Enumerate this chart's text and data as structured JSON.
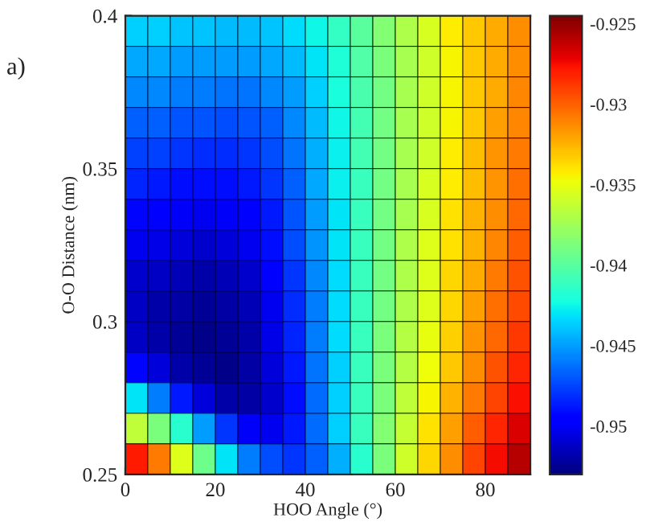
{
  "chart_data": {
    "type": "heatmap",
    "xlabel": "HOO Angle (°)",
    "ylabel": "O-O Distance (nm)",
    "annotations": [
      "a)"
    ],
    "x": [
      2.5,
      7.5,
      12.5,
      17.5,
      22.5,
      27.5,
      32.5,
      37.5,
      42.5,
      47.5,
      52.5,
      57.5,
      62.5,
      67.5,
      72.5,
      77.5,
      82.5,
      87.5
    ],
    "y": [
      0.395,
      0.385,
      0.375,
      0.365,
      0.355,
      0.345,
      0.335,
      0.325,
      0.315,
      0.305,
      0.295,
      0.285,
      0.275,
      0.265,
      0.255
    ],
    "xlim": [
      0,
      90
    ],
    "xticks": [
      0,
      20,
      40,
      60,
      80
    ],
    "ylim": [
      0.25,
      0.4
    ],
    "yticks": [
      0.25,
      0.3,
      0.35,
      0.4
    ],
    "clim": [
      -0.953,
      -0.9245
    ],
    "cticks": [
      -0.95,
      -0.945,
      -0.94,
      -0.935,
      -0.93,
      -0.925
    ],
    "cells": [
      [
        -0.9436,
        -0.9436,
        -0.9439,
        -0.9439,
        -0.9442,
        -0.9442,
        -0.9439,
        -0.9433,
        -0.9425,
        -0.9413,
        -0.9399,
        -0.9385,
        -0.937,
        -0.9356,
        -0.9342,
        -0.9331,
        -0.9322,
        -0.9313
      ],
      [
        -0.9447,
        -0.9447,
        -0.945,
        -0.945,
        -0.945,
        -0.945,
        -0.9447,
        -0.9442,
        -0.943,
        -0.9419,
        -0.9402,
        -0.9388,
        -0.9373,
        -0.9359,
        -0.9345,
        -0.9331,
        -0.9322,
        -0.9313
      ],
      [
        -0.9456,
        -0.9456,
        -0.9459,
        -0.9459,
        -0.9462,
        -0.9462,
        -0.9456,
        -0.945,
        -0.9436,
        -0.9422,
        -0.9405,
        -0.939,
        -0.9373,
        -0.9359,
        -0.9345,
        -0.9331,
        -0.9322,
        -0.9311
      ],
      [
        -0.9467,
        -0.9467,
        -0.947,
        -0.947,
        -0.9473,
        -0.947,
        -0.9467,
        -0.9456,
        -0.9442,
        -0.9425,
        -0.9407,
        -0.939,
        -0.9373,
        -0.9359,
        -0.9345,
        -0.9331,
        -0.9319,
        -0.9311
      ],
      [
        -0.9476,
        -0.9476,
        -0.9479,
        -0.9482,
        -0.9482,
        -0.9479,
        -0.9473,
        -0.9462,
        -0.9445,
        -0.9427,
        -0.9407,
        -0.939,
        -0.9373,
        -0.9359,
        -0.9342,
        -0.9328,
        -0.9316,
        -0.9308
      ],
      [
        -0.9484,
        -0.9487,
        -0.949,
        -0.949,
        -0.949,
        -0.9487,
        -0.9479,
        -0.9467,
        -0.9447,
        -0.9427,
        -0.941,
        -0.939,
        -0.9373,
        -0.9356,
        -0.9342,
        -0.9328,
        -0.9316,
        -0.9305
      ],
      [
        -0.9493,
        -0.9496,
        -0.9499,
        -0.9502,
        -0.9499,
        -0.9496,
        -0.9487,
        -0.947,
        -0.945,
        -0.943,
        -0.941,
        -0.939,
        -0.9373,
        -0.9356,
        -0.9339,
        -0.9325,
        -0.9313,
        -0.9302
      ],
      [
        -0.9502,
        -0.9504,
        -0.9507,
        -0.951,
        -0.9507,
        -0.9502,
        -0.949,
        -0.9473,
        -0.9453,
        -0.943,
        -0.941,
        -0.939,
        -0.937,
        -0.9353,
        -0.9339,
        -0.9325,
        -0.9311,
        -0.9299
      ],
      [
        -0.951,
        -0.9513,
        -0.9516,
        -0.9519,
        -0.9516,
        -0.951,
        -0.9496,
        -0.9479,
        -0.9456,
        -0.9433,
        -0.941,
        -0.939,
        -0.937,
        -0.9353,
        -0.9336,
        -0.9322,
        -0.9308,
        -0.9296
      ],
      [
        -0.9513,
        -0.9519,
        -0.9521,
        -0.9524,
        -0.9521,
        -0.9516,
        -0.9502,
        -0.9482,
        -0.9459,
        -0.9433,
        -0.941,
        -0.939,
        -0.937,
        -0.9353,
        -0.9336,
        -0.9319,
        -0.9305,
        -0.9293
      ],
      [
        -0.9513,
        -0.9519,
        -0.9524,
        -0.9527,
        -0.9524,
        -0.9519,
        -0.9504,
        -0.9484,
        -0.9459,
        -0.9433,
        -0.941,
        -0.9388,
        -0.9368,
        -0.935,
        -0.9333,
        -0.9316,
        -0.9302,
        -0.9288
      ],
      [
        -0.9493,
        -0.9507,
        -0.9519,
        -0.9524,
        -0.9527,
        -0.9521,
        -0.9507,
        -0.9487,
        -0.9462,
        -0.9436,
        -0.941,
        -0.9388,
        -0.9368,
        -0.9348,
        -0.9331,
        -0.9313,
        -0.9296,
        -0.9282
      ],
      [
        -0.943,
        -0.9459,
        -0.9487,
        -0.9507,
        -0.9519,
        -0.9521,
        -0.951,
        -0.949,
        -0.9464,
        -0.9436,
        -0.941,
        -0.9388,
        -0.9365,
        -0.9345,
        -0.9325,
        -0.9308,
        -0.9291,
        -0.9276
      ],
      [
        -0.9365,
        -0.9388,
        -0.9416,
        -0.945,
        -0.9479,
        -0.9499,
        -0.9502,
        -0.9487,
        -0.9464,
        -0.9436,
        -0.941,
        -0.9385,
        -0.9362,
        -0.9339,
        -0.9319,
        -0.9299,
        -0.9282,
        -0.9268
      ],
      [
        -0.9279,
        -0.9308,
        -0.9353,
        -0.9393,
        -0.943,
        -0.9459,
        -0.9473,
        -0.9479,
        -0.9467,
        -0.9445,
        -0.9416,
        -0.9388,
        -0.9359,
        -0.9336,
        -0.9313,
        -0.9291,
        -0.9274,
        -0.9259
      ]
    ]
  }
}
